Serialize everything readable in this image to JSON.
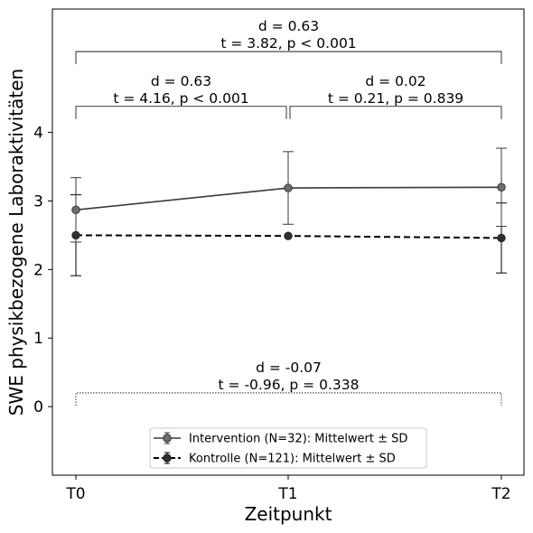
{
  "chart_data": {
    "type": "line",
    "xlabel": "Zeitpunkt",
    "ylabel": "SWE physikbezogene Laboraktivitäten",
    "categories": [
      "T0",
      "T1",
      "T2"
    ],
    "yticks": [
      0,
      1,
      2,
      3,
      4
    ],
    "ylim": [
      -1.0,
      5.8
    ],
    "grid": false,
    "legend_position": "bottom-center",
    "series": [
      {
        "name": "Intervention (N=32): Mittelwert ± SD",
        "mean": [
          2.87,
          3.19,
          3.2
        ],
        "sd": [
          0.47,
          0.53,
          0.57
        ],
        "line_style": "solid",
        "color": "#3a3a3a",
        "marker_color": "#6e6e6e"
      },
      {
        "name": "Kontrolle (N=121): Mittelwert ± SD",
        "mean": [
          2.5,
          2.49,
          2.46
        ],
        "sd": [
          0.59,
          0.0,
          0.51
        ],
        "line_style": "dashed",
        "color": "#000000",
        "marker_color": "#2e2e2e"
      }
    ],
    "annotations": [
      {
        "from": 0,
        "to": 2,
        "y": 5.18,
        "style": "solid",
        "line1": "d = 0.63",
        "line2": "t = 3.82, p < 0.001"
      },
      {
        "from": 0,
        "to": 1,
        "y": 4.38,
        "style": "solid",
        "line1": "d = 0.63",
        "line2": "t = 4.16, p < 0.001"
      },
      {
        "from": 1,
        "to": 2,
        "y": 4.38,
        "style": "solid",
        "line1": "d = 0.02",
        "line2": "t = 0.21, p = 0.839"
      },
      {
        "from": 0,
        "to": 2,
        "y": 0.2,
        "style": "dotted",
        "line1": "d = -0.07",
        "line2": "t = -0.96, p = 0.338"
      }
    ]
  }
}
